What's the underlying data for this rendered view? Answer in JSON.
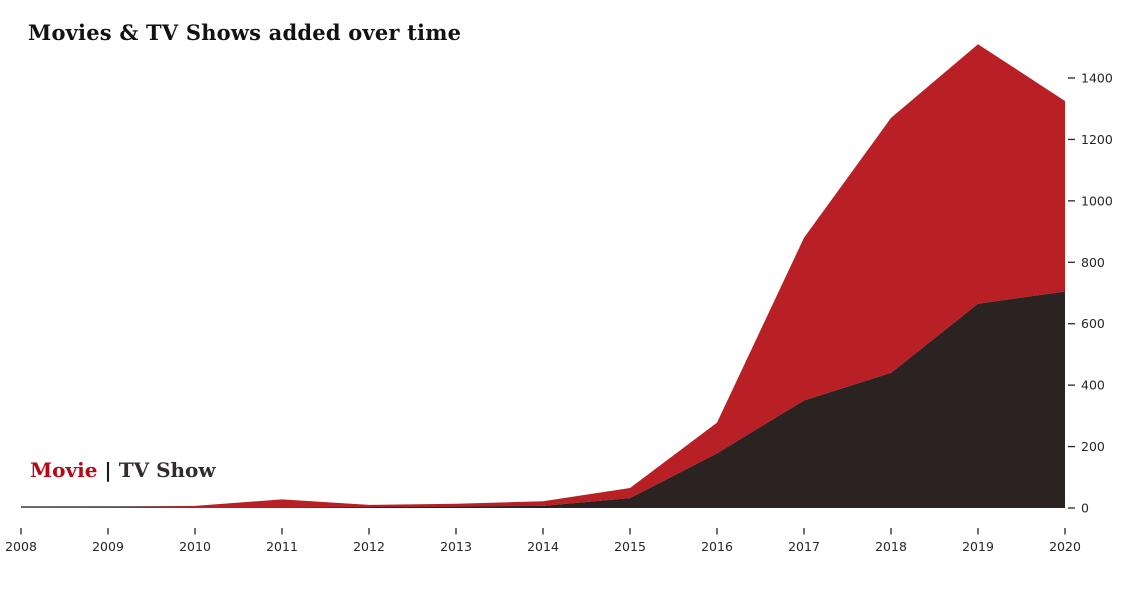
{
  "title": "Movies & TV Shows added over time",
  "legend": {
    "movie_label": "Movie",
    "separator": "|",
    "tv_label": "TV Show"
  },
  "colors": {
    "movie_area": "#b92025",
    "tv_area": "#2b2222",
    "movie_text": "#b20914",
    "tv_text": "#332c2c",
    "separator_text": "#1a1a1a",
    "baseline": "#6e6e6e",
    "tick": "#262626"
  },
  "chart_data": {
    "type": "area",
    "stacked": true,
    "title": "Movies & TV Shows added over time",
    "xlabel": "",
    "ylabel": "",
    "x": [
      2008,
      2009,
      2010,
      2011,
      2012,
      2013,
      2014,
      2015,
      2016,
      2017,
      2018,
      2019,
      2020
    ],
    "series": [
      {
        "name": "TV Show",
        "color": "#2b2222",
        "values": [
          0,
          0,
          0,
          0,
          3,
          4,
          7,
          32,
          178,
          350,
          440,
          665,
          705
        ]
      },
      {
        "name": "Movie",
        "color": "#b92025",
        "values": [
          1,
          2,
          7,
          28,
          7,
          10,
          15,
          33,
          100,
          530,
          830,
          845,
          620
        ]
      }
    ],
    "stacked_totals": [
      1,
      2,
      7,
      28,
      10,
      14,
      22,
      65,
      278,
      880,
      1270,
      1510,
      1325
    ],
    "yticks": [
      0,
      200,
      400,
      600,
      800,
      1000,
      1200,
      1400
    ],
    "ylim": [
      0,
      1511
    ],
    "grid": false,
    "legend_position": "lower left",
    "y_axis_side": "right"
  }
}
